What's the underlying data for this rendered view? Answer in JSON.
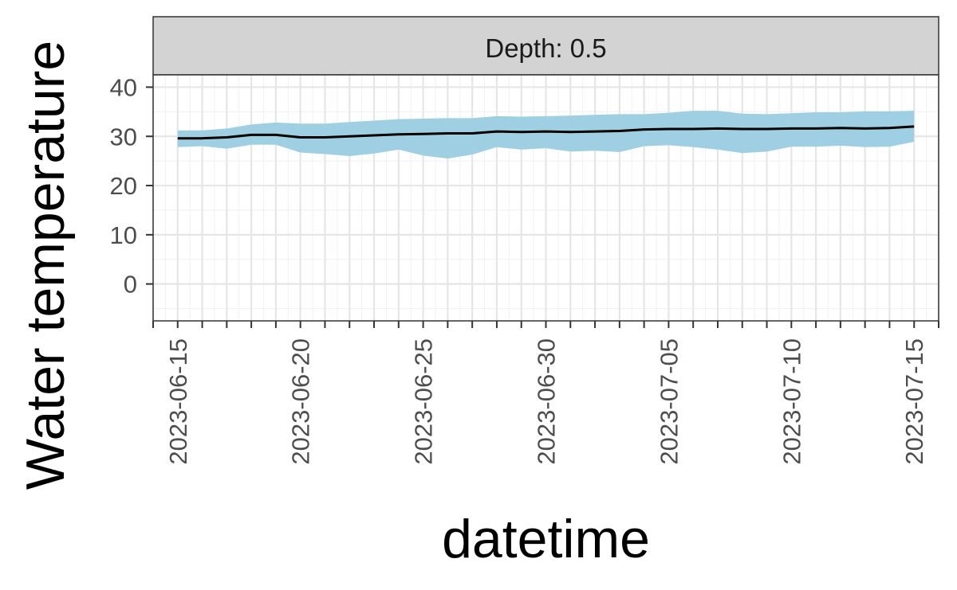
{
  "chart_data": {
    "type": "area",
    "facet_label": "Depth: 0.5",
    "xlabel": "datetime",
    "ylabel": "Water temperature",
    "ylim": [
      -7.5,
      42.5
    ],
    "y_ticks": [
      0,
      10,
      20,
      30,
      40
    ],
    "xlim": [
      "2023-06-14",
      "2023-07-16"
    ],
    "x_tick_labels": [
      "2023-06-15",
      "2023-06-20",
      "2023-06-25",
      "2023-06-30",
      "2023-07-05",
      "2023-07-10",
      "2023-07-15"
    ],
    "grid": true,
    "legend": "none",
    "colors": {
      "band": "#9ecfe2",
      "line": "#000000",
      "strip": "#d3d3d3",
      "grid_major": "#e6e6e6",
      "grid_minor": "#f2f2f2"
    },
    "x": [
      "2023-06-15",
      "2023-06-16",
      "2023-06-17",
      "2023-06-18",
      "2023-06-19",
      "2023-06-20",
      "2023-06-21",
      "2023-06-22",
      "2023-06-23",
      "2023-06-24",
      "2023-06-25",
      "2023-06-26",
      "2023-06-27",
      "2023-06-28",
      "2023-06-29",
      "2023-06-30",
      "2023-07-01",
      "2023-07-02",
      "2023-07-03",
      "2023-07-04",
      "2023-07-05",
      "2023-07-06",
      "2023-07-07",
      "2023-07-08",
      "2023-07-09",
      "2023-07-10",
      "2023-07-11",
      "2023-07-12",
      "2023-07-13",
      "2023-07-14",
      "2023-07-15"
    ],
    "series": [
      {
        "mean": [
          29.6,
          29.6,
          29.8,
          30.3,
          30.3,
          29.8,
          29.8,
          30.0,
          30.2,
          30.4,
          30.5,
          30.6,
          30.6,
          31.0,
          30.9,
          31.0,
          30.9,
          31.0,
          31.1,
          31.4,
          31.5,
          31.5,
          31.6,
          31.5,
          31.5,
          31.6,
          31.6,
          31.7,
          31.6,
          31.7,
          32.0
        ],
        "upper": [
          31.2,
          31.2,
          31.6,
          32.4,
          32.8,
          32.6,
          32.6,
          32.9,
          33.2,
          33.5,
          33.6,
          33.7,
          33.7,
          34.1,
          34.0,
          34.1,
          34.2,
          34.4,
          34.5,
          34.5,
          34.8,
          35.2,
          35.2,
          34.6,
          34.5,
          34.7,
          34.9,
          34.9,
          35.1,
          35.1,
          35.2
        ],
        "lower": [
          27.8,
          28.0,
          27.5,
          28.3,
          28.3,
          26.7,
          26.4,
          26.0,
          26.5,
          27.3,
          26.1,
          25.5,
          26.3,
          27.8,
          27.3,
          27.6,
          26.9,
          27.1,
          26.8,
          28.0,
          28.2,
          27.8,
          27.3,
          26.6,
          26.9,
          27.9,
          27.9,
          28.1,
          27.8,
          27.9,
          28.9
        ]
      }
    ]
  }
}
